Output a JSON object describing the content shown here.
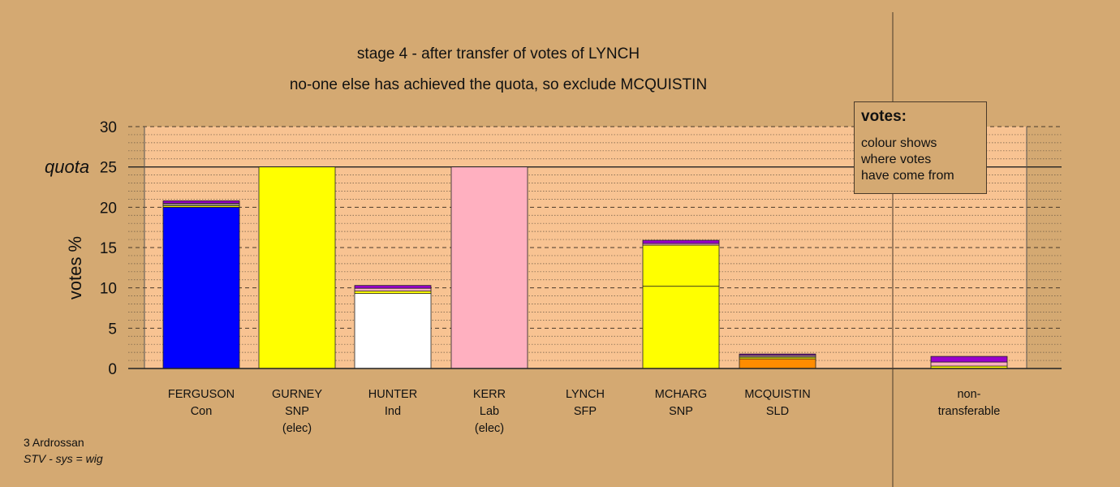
{
  "chart_data": {
    "type": "bar",
    "stacked": true,
    "title": "stage 4 - after transfer of votes of LYNCH",
    "subtitle": "no-one else has achieved the quota, so exclude MCQUISTIN",
    "ylabel": "votes %",
    "ylim": [
      0,
      30
    ],
    "yticks": [
      "0",
      "5",
      "10",
      "15",
      "20",
      "25",
      "30"
    ],
    "quota_label": "quota",
    "quota_value": 25,
    "grid": true,
    "categories": [
      {
        "name": "FERGUSON",
        "party": "Con",
        "note": ""
      },
      {
        "name": "GURNEY",
        "party": "SNP",
        "note": "(elec)"
      },
      {
        "name": "HUNTER",
        "party": "Ind",
        "note": ""
      },
      {
        "name": "KERR",
        "party": "Lab",
        "note": "(elec)"
      },
      {
        "name": "LYNCH",
        "party": "SFP",
        "note": ""
      },
      {
        "name": "MCHARG",
        "party": "SNP",
        "note": ""
      },
      {
        "name": "MCQUISTIN",
        "party": "SLD",
        "note": ""
      },
      {
        "name": "non-",
        "party": "transferable",
        "note": ""
      }
    ],
    "bars": [
      [
        {
          "value": 20.0,
          "color": "#0000ff"
        },
        {
          "value": 0.2,
          "color": "#ffff00"
        },
        {
          "value": 0.15,
          "color": "#ffffff"
        },
        {
          "value": 0.15,
          "color": "#ffb0c0"
        },
        {
          "value": 0.3,
          "color": "#9900cc"
        }
      ],
      [
        {
          "value": 25.0,
          "color": "#ffff00"
        }
      ],
      [
        {
          "value": 9.3,
          "color": "#ffffff"
        },
        {
          "value": 0.3,
          "color": "#ffff00"
        },
        {
          "value": 0.35,
          "color": "#ffb0c0"
        },
        {
          "value": 0.35,
          "color": "#9900cc"
        }
      ],
      [
        {
          "value": 25.0,
          "color": "#ffb0c0"
        }
      ],
      [],
      [
        {
          "value": 10.2,
          "color": "#ffff00"
        },
        {
          "value": 5.1,
          "color": "#ffff00"
        },
        {
          "value": 0.2,
          "color": "#ffb0c0"
        },
        {
          "value": 0.4,
          "color": "#9900cc"
        }
      ],
      [
        {
          "value": 1.2,
          "color": "#ff8c00"
        },
        {
          "value": 0.2,
          "color": "#ffff00"
        },
        {
          "value": 0.1,
          "color": "#ffffff"
        },
        {
          "value": 0.15,
          "color": "#ffb0c0"
        },
        {
          "value": 0.15,
          "color": "#9900cc"
        }
      ],
      [
        {
          "value": 0.3,
          "color": "#ffff00"
        },
        {
          "value": 0.5,
          "color": "#ffb0c0"
        },
        {
          "value": 0.7,
          "color": "#9900cc"
        }
      ]
    ]
  },
  "legend": {
    "title": "votes:",
    "lines": [
      "colour shows",
      "where votes",
      "have come from"
    ]
  },
  "footer": {
    "line1": "3 Ardrossan",
    "line2": "STV - sys = wig"
  },
  "colors": {
    "background": "#d4a972",
    "plot_area": "#f8c392"
  }
}
